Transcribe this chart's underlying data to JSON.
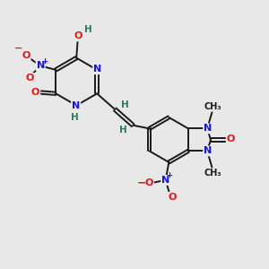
{
  "bg_color": "#e8e8e8",
  "bond_color": "#1a1a1a",
  "bond_width": 1.4,
  "atom_colors": {
    "C": "#1a1a1a",
    "N": "#1414e6",
    "O": "#e61414",
    "H": "#2a7a6a"
  },
  "fig_size": [
    3.0,
    3.0
  ],
  "dpi": 100
}
